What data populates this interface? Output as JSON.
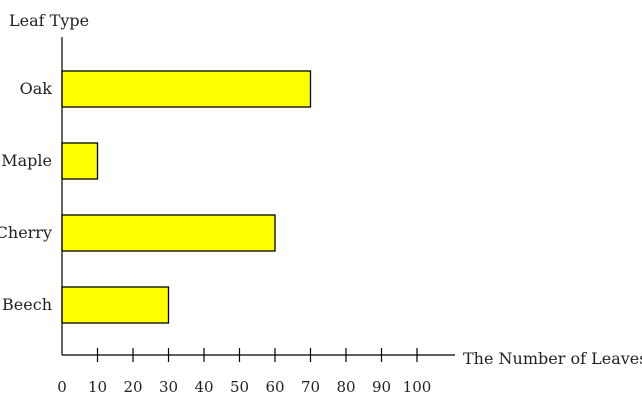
{
  "chart_data": {
    "type": "bar",
    "orientation": "horizontal",
    "title": "",
    "xlabel": "The Number of Leaves",
    "ylabel": "Leaf Type",
    "categories": [
      "Oak",
      "Maple",
      "Cherry",
      "Beech"
    ],
    "values": [
      70,
      10,
      60,
      30
    ],
    "xlim": [
      0,
      100
    ],
    "xticks": [
      0,
      10,
      20,
      30,
      40,
      50,
      60,
      70,
      80,
      90,
      100
    ],
    "grid": false,
    "legend": "none",
    "bar_color": "#ffff00",
    "bar_stroke": "#000000"
  }
}
